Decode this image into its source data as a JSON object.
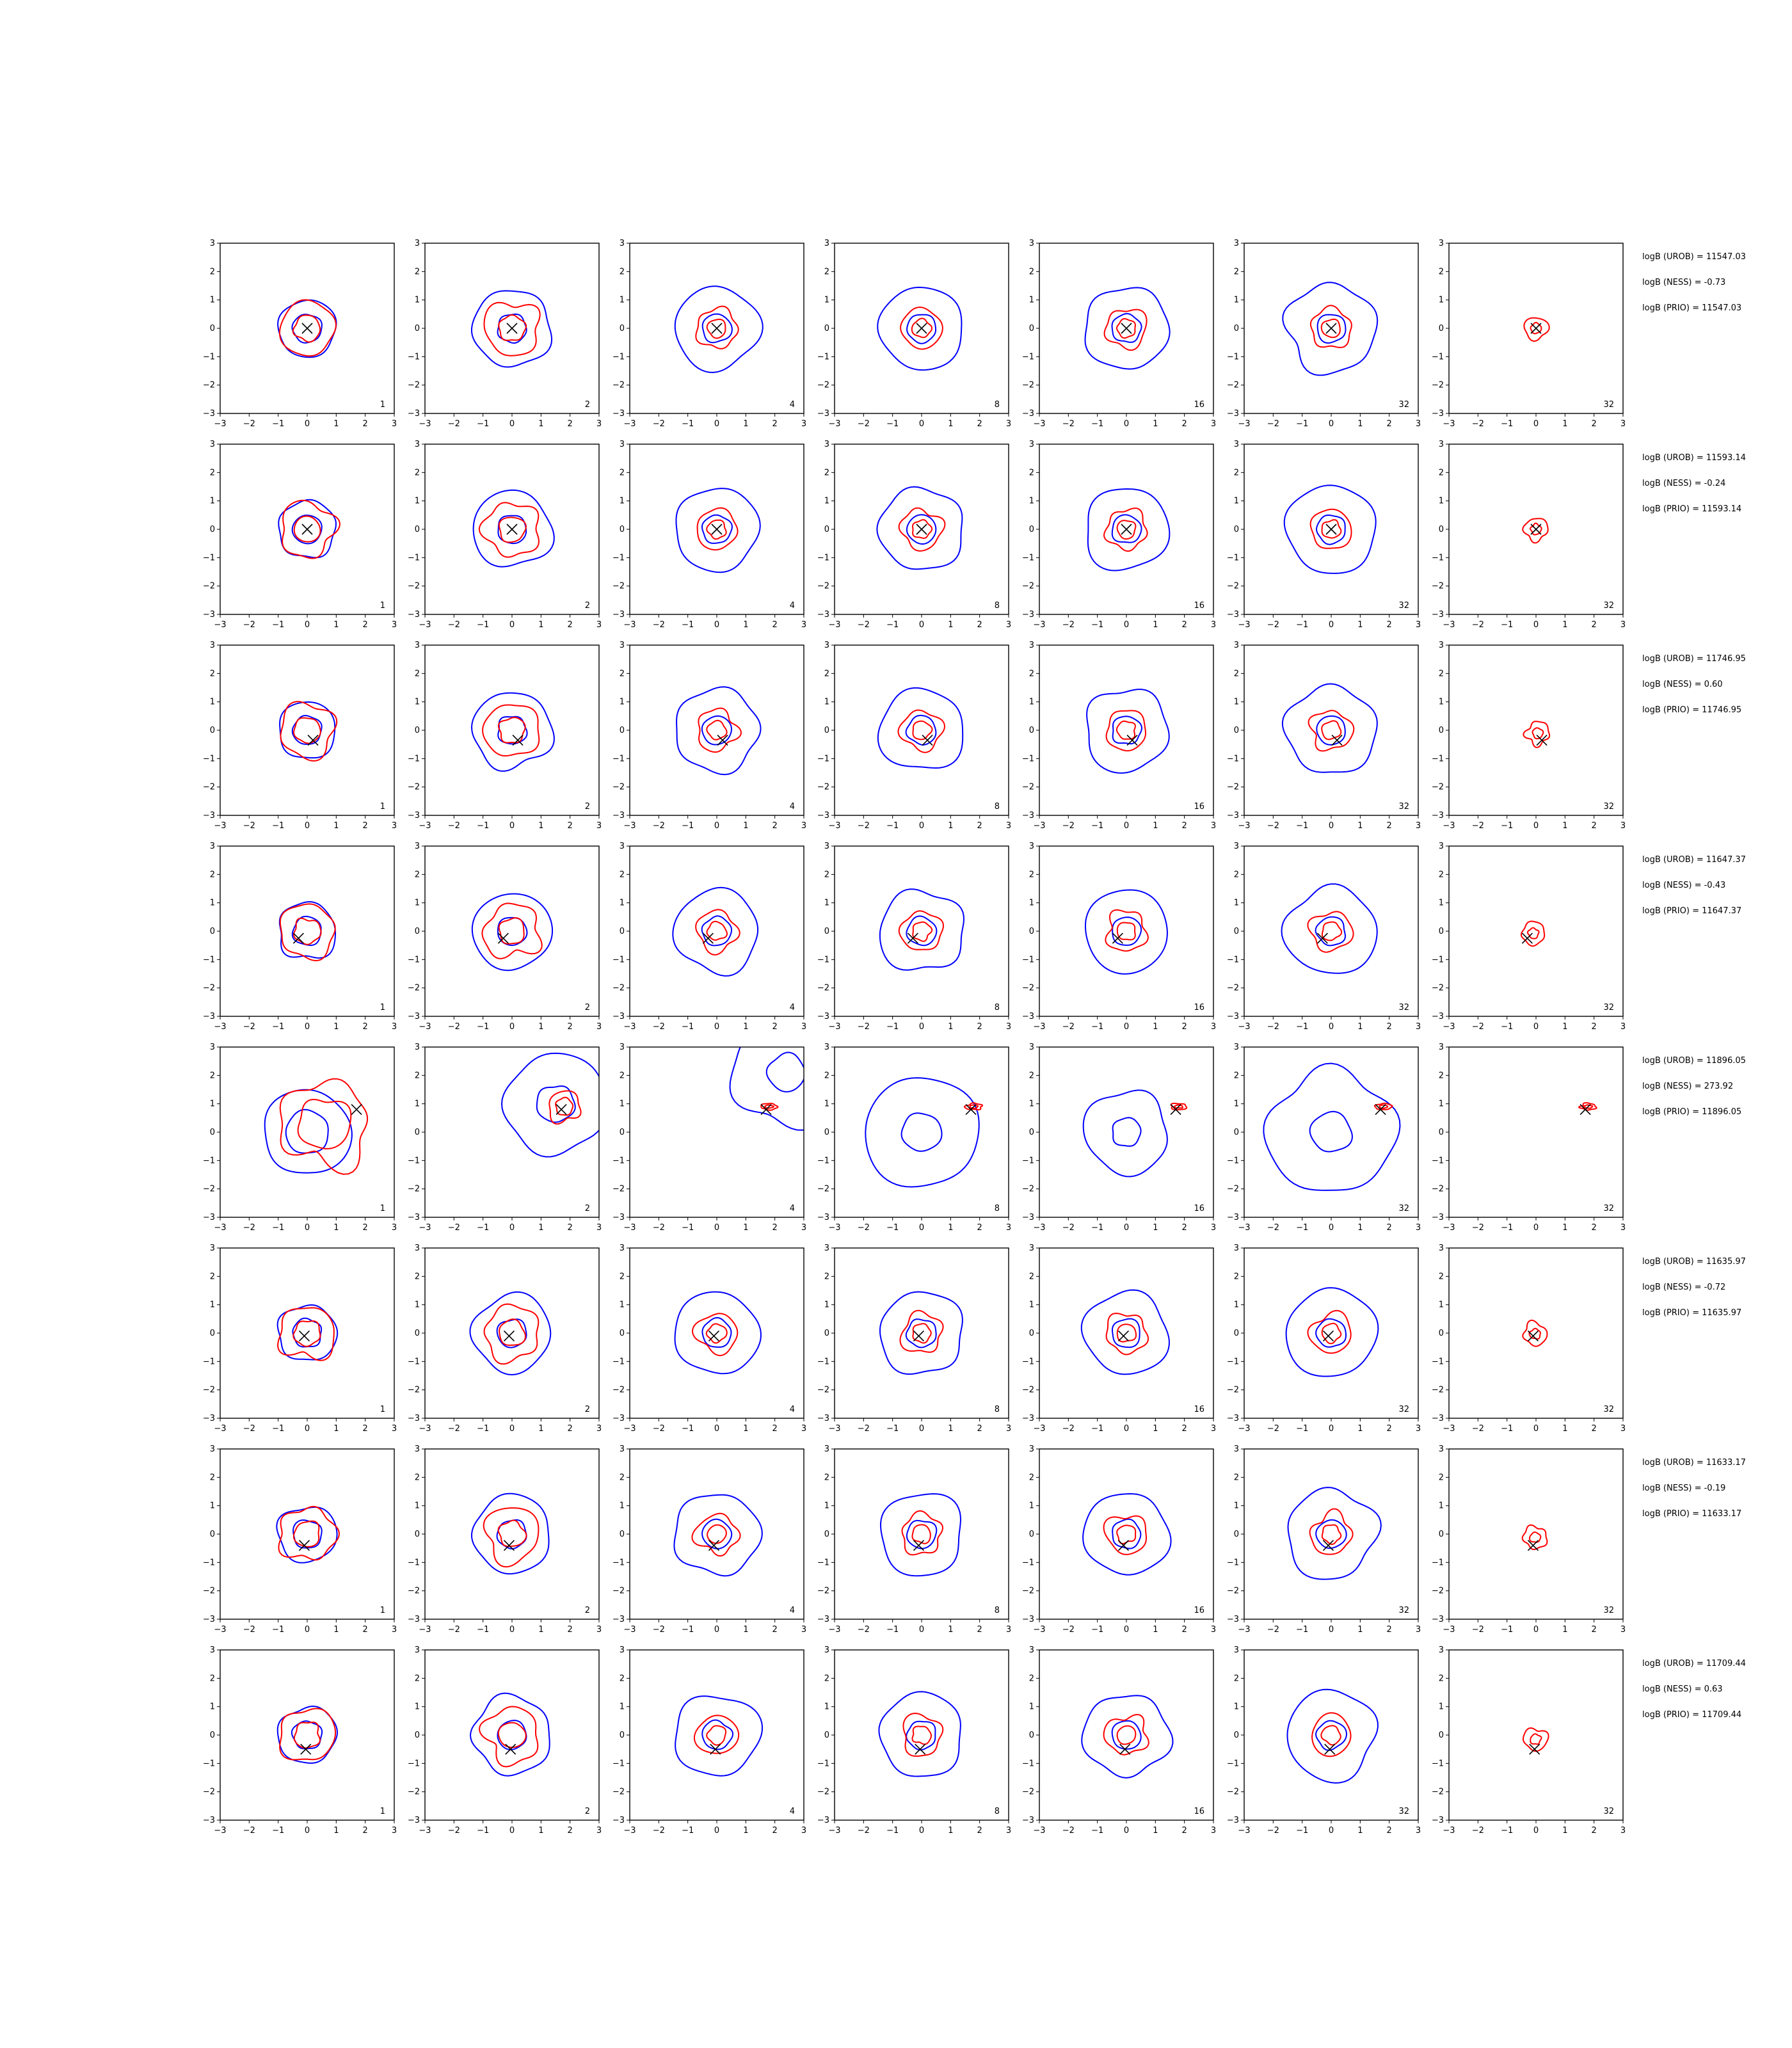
{
  "chart_data": {
    "type": "contour",
    "grid": {
      "rows": 8,
      "cols": 7
    },
    "axes": {
      "xlim": [
        -3,
        3
      ],
      "ylim": [
        -3,
        3
      ],
      "xticks": [
        "−3",
        "−2",
        "−1",
        "0",
        "1",
        "2",
        "3"
      ],
      "yticks": [
        "−3",
        "−2",
        "−1",
        "0",
        "1",
        "2",
        "3"
      ],
      "grid": false
    },
    "column_labels": [
      "1",
      "2",
      "4",
      "8",
      "16",
      "32",
      "32"
    ],
    "colors": {
      "reference": "#0000ff",
      "sample": "#ff0000",
      "marker": "#000000"
    },
    "rows": [
      {
        "marker": [
          0.0,
          0.0
        ],
        "wide": false,
        "stats": {
          "urob": "logB (UROB) = 11547.03",
          "ness": "logB (NESS) = -0.73",
          "prio": "logB (PRIO) = 11547.03"
        }
      },
      {
        "marker": [
          0.0,
          0.0
        ],
        "wide": false,
        "stats": {
          "urob": "logB (UROB) = 11593.14",
          "ness": "logB (NESS) = -0.24",
          "prio": "logB (PRIO) = 11593.14"
        }
      },
      {
        "marker": [
          0.2,
          -0.35
        ],
        "wide": false,
        "stats": {
          "urob": "logB (UROB) = 11746.95",
          "ness": "logB (NESS) = 0.60",
          "prio": "logB (PRIO) = 11746.95"
        }
      },
      {
        "marker": [
          -0.3,
          -0.25
        ],
        "wide": false,
        "stats": {
          "urob": "logB (UROB) = 11647.37",
          "ness": "logB (NESS) = -0.43",
          "prio": "logB (PRIO) = 11647.37"
        }
      },
      {
        "marker": [
          1.7,
          0.8
        ],
        "wide": true,
        "stats": {
          "urob": "logB (UROB) = 11896.05",
          "ness": "logB (NESS) = 273.92",
          "prio": "logB (PRIO) = 11896.05"
        }
      },
      {
        "marker": [
          -0.1,
          -0.1
        ],
        "wide": false,
        "stats": {
          "urob": "logB (UROB) = 11635.97",
          "ness": "logB (NESS) = -0.72",
          "prio": "logB (PRIO) = 11635.97"
        }
      },
      {
        "marker": [
          -0.1,
          -0.4
        ],
        "wide": false,
        "stats": {
          "urob": "logB (UROB) = 11633.17",
          "ness": "logB (NESS) = -0.19",
          "prio": "logB (PRIO) = 11633.17"
        }
      },
      {
        "marker": [
          -0.05,
          -0.5
        ],
        "wide": false,
        "stats": {
          "urob": "logB (UROB) = 11709.44",
          "ness": "logB (NESS) = 0.63",
          "prio": "logB (PRIO) = 11709.44"
        }
      }
    ]
  }
}
